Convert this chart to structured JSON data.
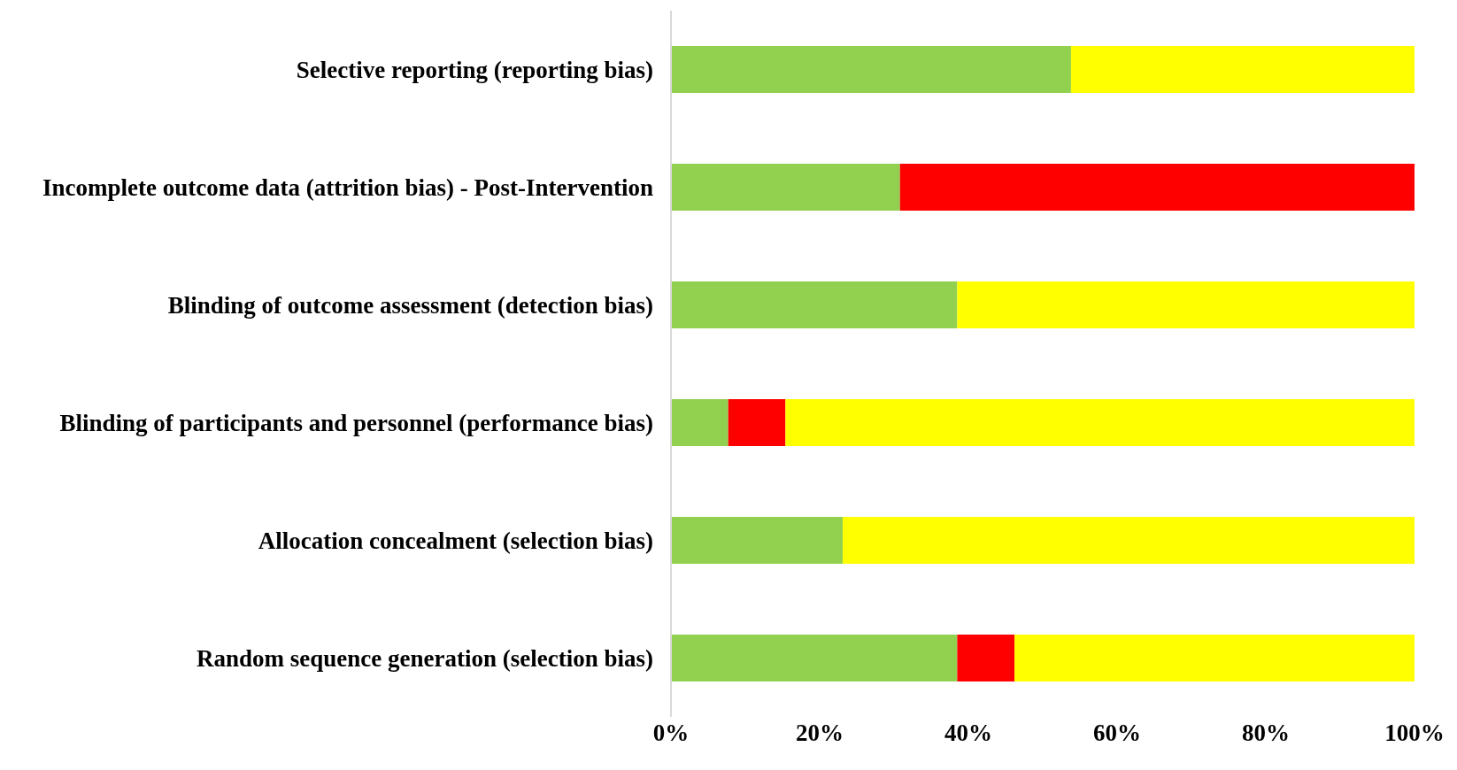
{
  "chart_data": {
    "type": "bar",
    "orientation": "horizontal",
    "stacked": true,
    "categories": [
      "Selective reporting (reporting bias)",
      "Incomplete outcome data (attrition bias) - Post-Intervention",
      "Blinding of outcome assessment (detection bias)",
      "Blinding of participants and personnel (performance bias)",
      "Allocation concealment (selection bias)",
      "Random sequence generation (selection bias)"
    ],
    "series": [
      {
        "color": "#92d050",
        "values": [
          53.8,
          30.8,
          38.5,
          7.7,
          23.1,
          38.5
        ]
      },
      {
        "color": "#ff0000",
        "values": [
          0,
          69.2,
          0,
          7.7,
          0,
          7.7
        ]
      },
      {
        "color": "#ffff00",
        "values": [
          46.2,
          0,
          61.5,
          84.6,
          76.9,
          53.8
        ]
      }
    ],
    "xlim": [
      0,
      100
    ],
    "xticks": [
      {
        "value": 0,
        "label": "0%"
      },
      {
        "value": 20,
        "label": "20%"
      },
      {
        "value": 40,
        "label": "40%"
      },
      {
        "value": 60,
        "label": "60%"
      },
      {
        "value": 80,
        "label": "80%"
      },
      {
        "value": 100,
        "label": "100%"
      }
    ],
    "grid": false,
    "legend": false
  }
}
